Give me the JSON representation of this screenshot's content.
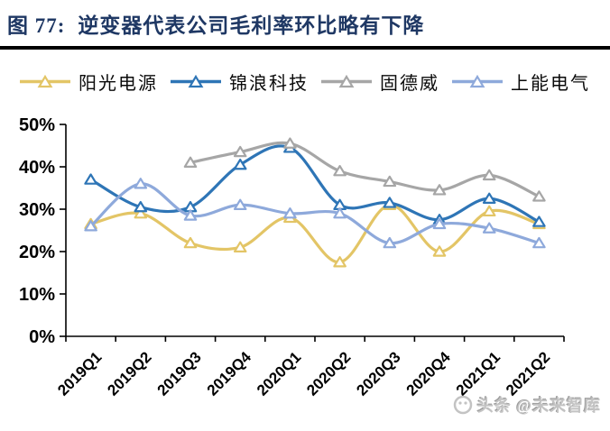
{
  "header": {
    "figure_label": "图 77:",
    "title": "逆变器代表公司毛利率环比略有下降"
  },
  "watermark": {
    "text": "头条 @未来智库"
  },
  "chart_data": {
    "type": "line",
    "title": "逆变器代表公司毛利率环比略有下降",
    "categories": [
      "2019Q1",
      "2019Q2",
      "2019Q3",
      "2019Q4",
      "2020Q1",
      "2020Q2",
      "2020Q3",
      "2020Q4",
      "2021Q1",
      "2021Q2"
    ],
    "series": [
      {
        "name": "阳光电源",
        "color": "#E3C566",
        "values": [
          26.5,
          29,
          22,
          21,
          28,
          17.5,
          31,
          20,
          29.5,
          26.5
        ]
      },
      {
        "name": "锦浪科技",
        "color": "#2E75B6",
        "values": [
          37,
          30.5,
          30.5,
          40.5,
          44.5,
          31,
          31.5,
          27.5,
          32.5,
          27
        ]
      },
      {
        "name": "固德威",
        "color": "#A6A6A6",
        "values": [
          null,
          null,
          41,
          43.5,
          45.5,
          39,
          36.5,
          34.5,
          38,
          33
        ]
      },
      {
        "name": "上能电气",
        "color": "#8EA9DB",
        "values": [
          26,
          36,
          28.5,
          31,
          29,
          29,
          22,
          26.5,
          25.5,
          22
        ]
      }
    ],
    "xlabel": "",
    "ylabel": "",
    "ylim": [
      0,
      50
    ],
    "ytick_step": 10,
    "ytick_suffix": "%",
    "grid": false,
    "legend_position": "top",
    "marker": "open-triangle",
    "line_style": "smooth"
  }
}
